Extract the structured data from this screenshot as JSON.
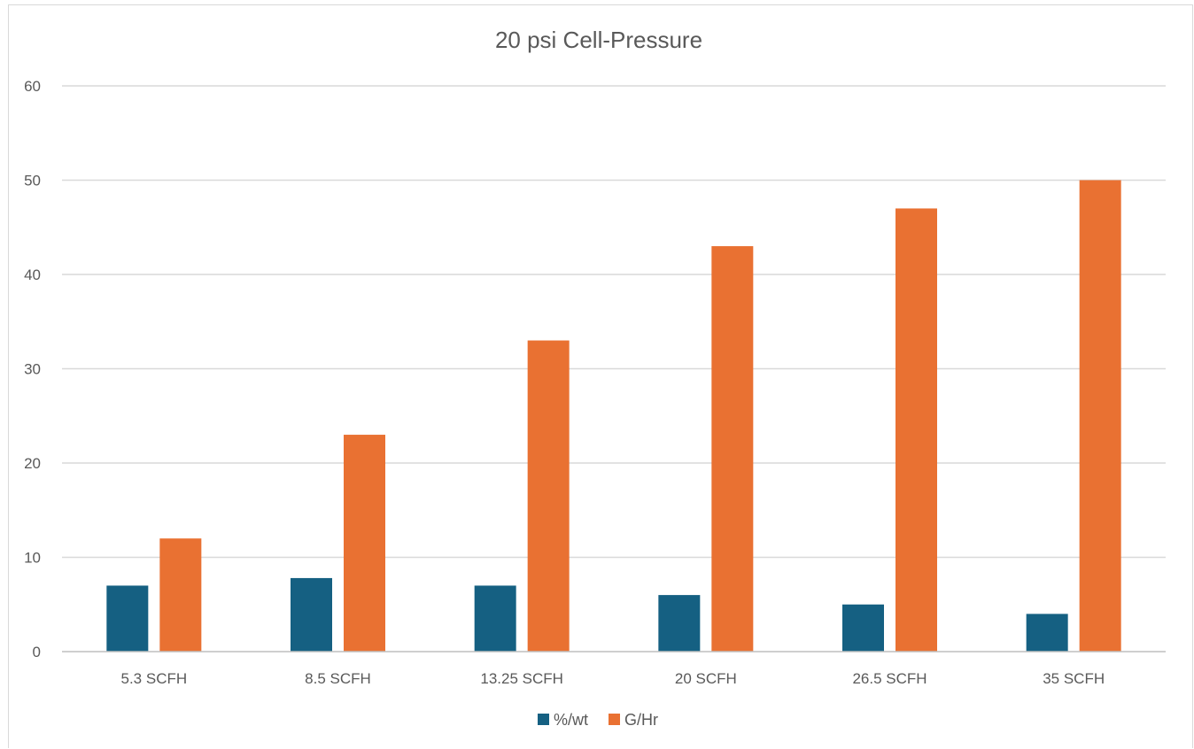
{
  "chart_data": {
    "type": "bar",
    "title": "20 psi Cell-Pressure",
    "xlabel": "",
    "ylabel": "",
    "categories": [
      "5.3 SCFH",
      "8.5 SCFH",
      "13.25 SCFH",
      "20 SCFH",
      "26.5 SCFH",
      "35 SCFH"
    ],
    "series": [
      {
        "name": "%/wt",
        "color": "#156082",
        "values": [
          7,
          7.8,
          7,
          6,
          5,
          4
        ]
      },
      {
        "name": "G/Hr",
        "color": "#e97132",
        "values": [
          12,
          23,
          33,
          43,
          47,
          50
        ]
      }
    ],
    "ylim": [
      0,
      60
    ],
    "yticks": [
      "0",
      "10",
      "20",
      "30",
      "40",
      "50",
      "60"
    ],
    "grid": true,
    "legend": "bottom"
  }
}
